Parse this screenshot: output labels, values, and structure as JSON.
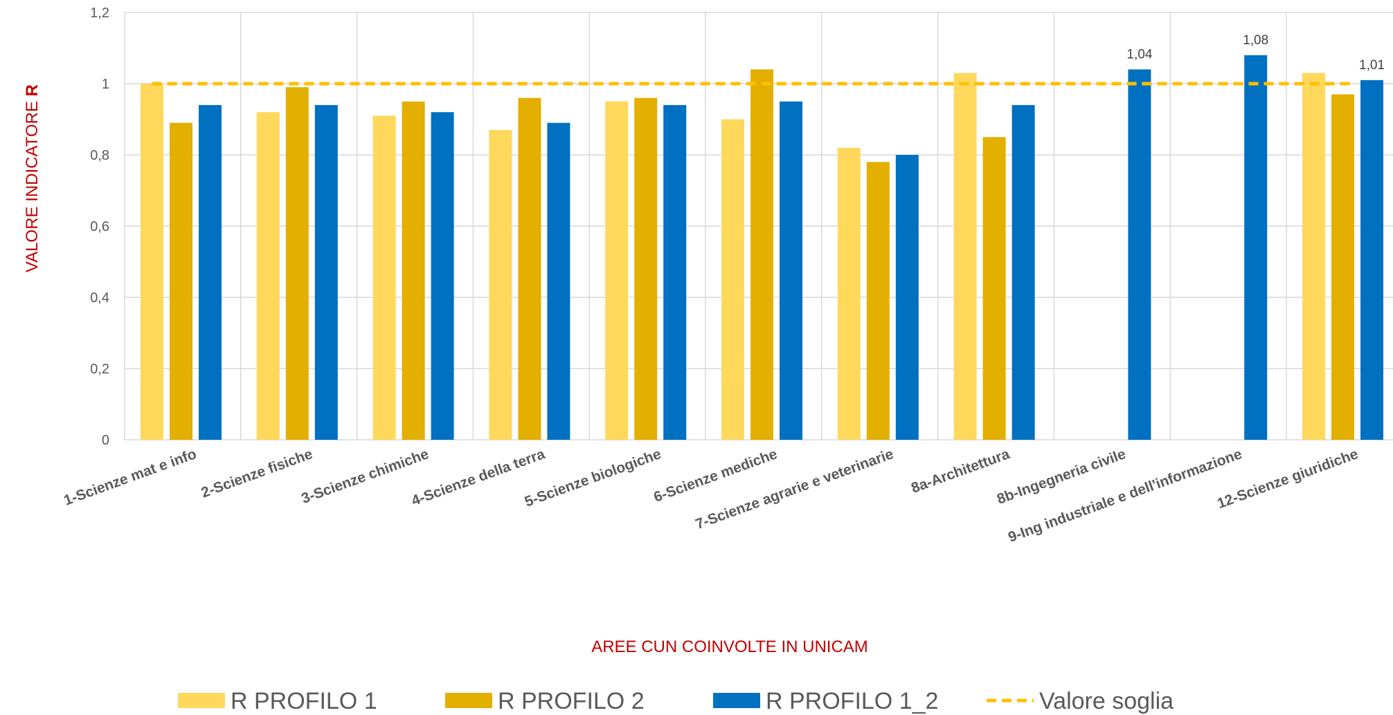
{
  "chart_data": {
    "type": "bar",
    "title": "",
    "xlabel": "AREE CUN COINVOLTE IN UNICAM",
    "ylabel_text": "VALORE INDICATORE ",
    "ylabel_bold": "R",
    "ylim": [
      0,
      1.2
    ],
    "yticks": [
      0,
      0.2,
      0.4,
      0.6,
      0.8,
      1,
      1.2
    ],
    "ytick_labels": [
      "0",
      "0,2",
      "0,4",
      "0,6",
      "0,8",
      "1",
      "1,2"
    ],
    "grid": true,
    "legend_position": "bottom",
    "categories": [
      "1-Scienze mat e info",
      "2-Scienze fisiche",
      "3-Scienze chimiche",
      "4-Scienze della terra",
      "5-Scienze biologiche",
      "6-Scienze mediche",
      "7-Scienze agrarie e veterinarie",
      "8a-Architettura",
      "8b-Ingegneria civile",
      "9-Ing industriale e dell'informazione",
      "12-Scienze giuridiche"
    ],
    "series": [
      {
        "name": "R PROFILO 1",
        "color": "#FFD85C",
        "values": [
          1.0,
          0.92,
          0.91,
          0.87,
          0.95,
          0.9,
          0.82,
          1.03,
          null,
          null,
          1.03
        ]
      },
      {
        "name": "R PROFILO 2",
        "color": "#E3AF00",
        "values": [
          0.89,
          0.99,
          0.95,
          0.96,
          0.96,
          1.04,
          0.78,
          0.85,
          null,
          null,
          0.97
        ]
      },
      {
        "name": "R PROFILO 1_2",
        "color": "#0070C0",
        "values": [
          0.94,
          0.94,
          0.92,
          0.89,
          0.94,
          0.95,
          0.8,
          0.94,
          1.04,
          1.08,
          1.01
        ]
      }
    ],
    "data_labels": [
      {
        "series": 2,
        "category": 8,
        "text": "1,04"
      },
      {
        "series": 2,
        "category": 9,
        "text": "1,08"
      },
      {
        "series": 2,
        "category": 10,
        "text": "1,01"
      }
    ],
    "threshold": {
      "name": "Valore soglia",
      "value": 1.0,
      "color": "#FFC000",
      "style": "dashed"
    }
  }
}
